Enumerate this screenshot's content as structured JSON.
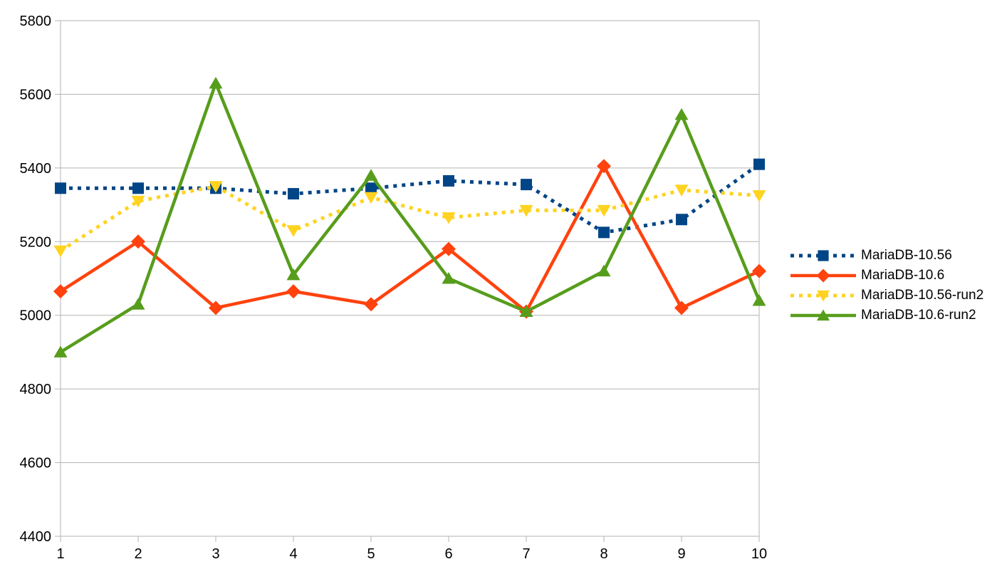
{
  "chart_data": {
    "type": "line",
    "title": "",
    "xlabel": "",
    "ylabel": "",
    "categories": [
      "1",
      "2",
      "3",
      "4",
      "5",
      "6",
      "7",
      "8",
      "9",
      "10"
    ],
    "series": [
      {
        "name": "MariaDB-10.56",
        "color": "#004586",
        "line_style": "dotted",
        "marker": "square",
        "values": [
          5345,
          5345,
          5345,
          5330,
          5345,
          5365,
          5355,
          5225,
          5260,
          5410
        ]
      },
      {
        "name": "MariaDB-10.6",
        "color": "#ff420e",
        "line_style": "solid",
        "marker": "diamond",
        "values": [
          5065,
          5200,
          5020,
          5065,
          5030,
          5180,
          5010,
          5405,
          5020,
          5120
        ]
      },
      {
        "name": "MariaDB-10.56-run2",
        "color": "#ffd320",
        "line_style": "dotted",
        "marker": "triangle-down",
        "values": [
          5175,
          5310,
          5350,
          5230,
          5320,
          5265,
          5285,
          5285,
          5340,
          5325
        ]
      },
      {
        "name": "MariaDB-10.6-run2",
        "color": "#579d1c",
        "line_style": "solid",
        "marker": "triangle-up",
        "values": [
          4900,
          5030,
          5630,
          5110,
          5380,
          5100,
          5010,
          5120,
          5545,
          5040
        ]
      }
    ],
    "ylim": [
      4400,
      5800
    ],
    "ytick_step": 200,
    "yticks": [
      "4400",
      "4600",
      "4800",
      "5000",
      "5200",
      "5400",
      "5600",
      "5800"
    ],
    "grid": "horizontal",
    "legend_position": "right",
    "axis_color": "#b3b3b3",
    "text_color": "#000000",
    "background_color": "#ffffff"
  }
}
